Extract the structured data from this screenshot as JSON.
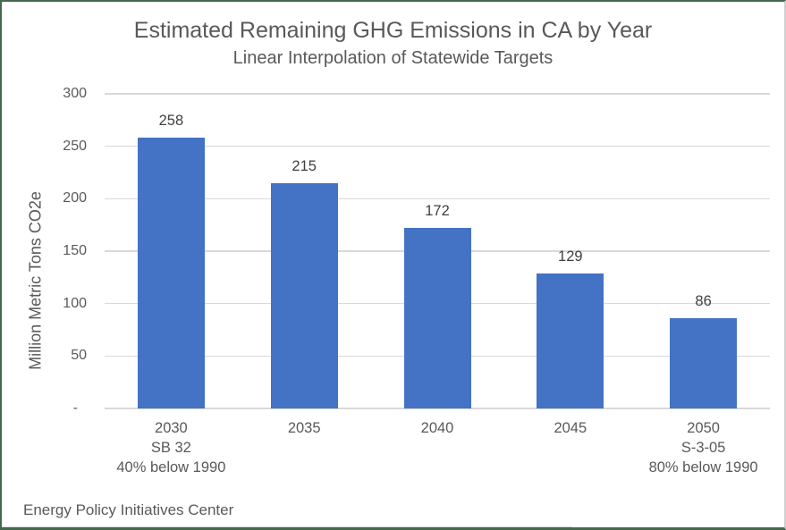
{
  "chart_data": {
    "type": "bar",
    "title": "Estimated Remaining GHG Emissions in CA by Year",
    "subtitle": "Linear Interpolation of Statewide Targets",
    "ylabel": "Million Metric Tons CO2e",
    "xlabel": "",
    "footer": "Energy Policy Initiatives Center",
    "categories": [
      [
        "2030",
        "SB 32",
        "40% below 1990"
      ],
      [
        "2035"
      ],
      [
        "2040"
      ],
      [
        "2045"
      ],
      [
        "2050",
        "S-3-05",
        "80% below 1990"
      ]
    ],
    "values": [
      258,
      215,
      172,
      129,
      86
    ],
    "ylim": [
      0,
      300
    ],
    "ytick_step": 50,
    "ytick_labels": [
      "-",
      "50",
      "100",
      "150",
      "200",
      "250",
      "300"
    ],
    "grid": true,
    "legend": false,
    "colors": {
      "bar": "#4472C4",
      "gridline": "#D9D9D9",
      "axis_text": "#595959",
      "title_text": "#595959",
      "data_label": "#404040",
      "border_green": "#44694E",
      "border_gray": "#CFCFCF"
    }
  }
}
